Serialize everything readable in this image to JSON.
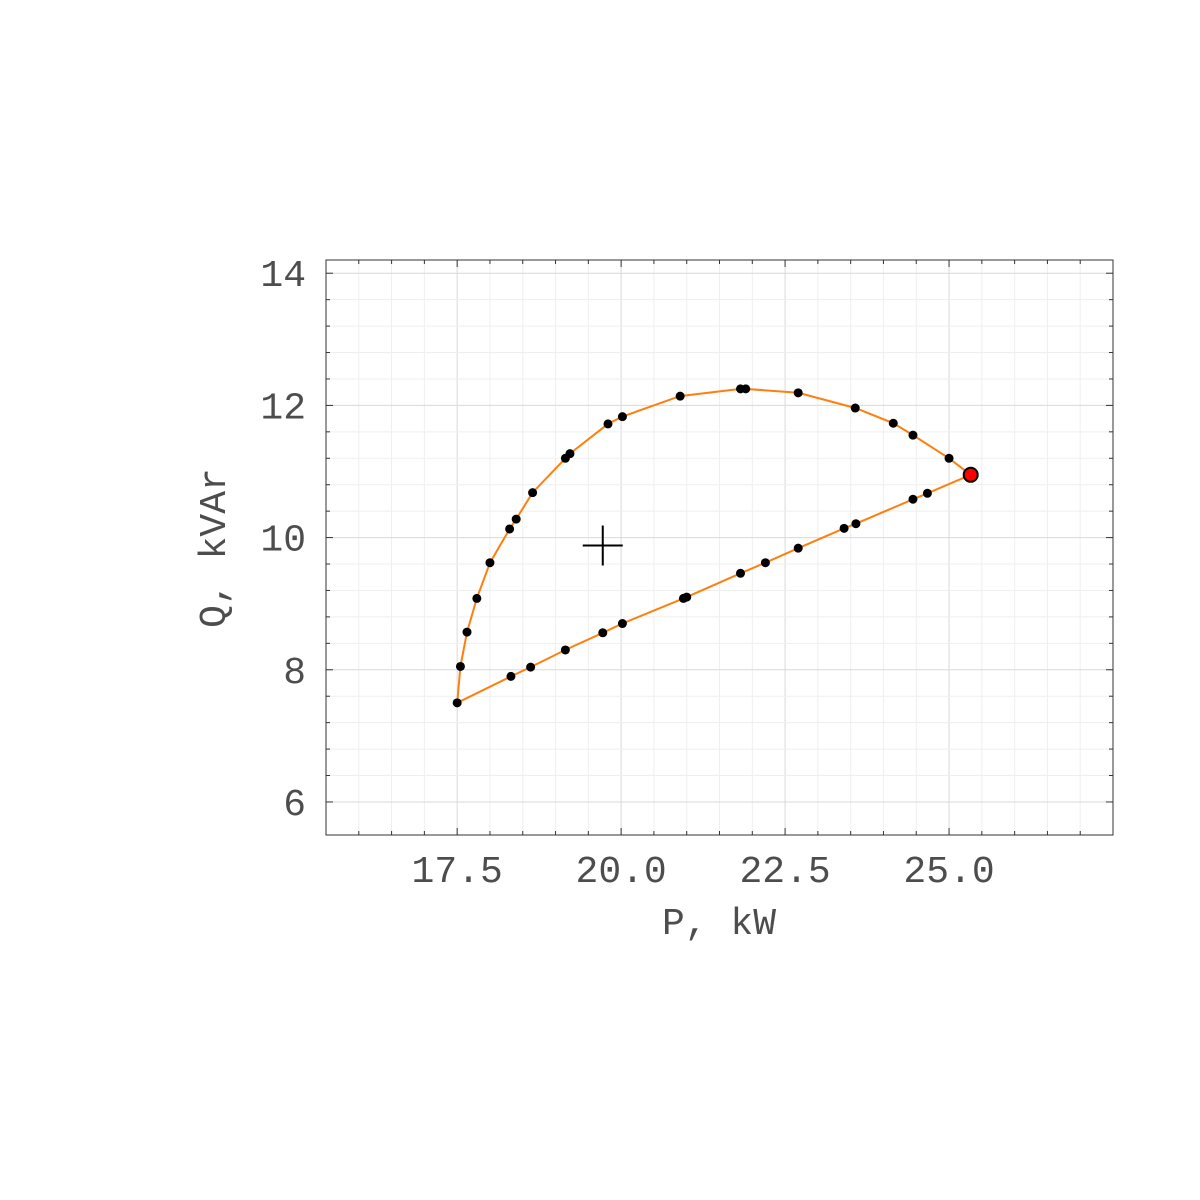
{
  "chart_data": {
    "type": "scatter",
    "xlabel": "P, kW",
    "ylabel": "Q, kVAr",
    "xlim": [
      15.5,
      27.5
    ],
    "ylim": [
      5.5,
      14.2
    ],
    "x_ticks": [
      17.5,
      20.0,
      22.5,
      25.0
    ],
    "x_tick_labels": [
      "17.5",
      "20.0",
      "22.5",
      "25.0"
    ],
    "y_ticks": [
      6,
      8,
      10,
      12,
      14
    ],
    "y_tick_labels": [
      "6",
      "8",
      "10",
      "12",
      "14"
    ],
    "grid": true,
    "legend": "none",
    "line_color": "#ff7f0e",
    "point_color": "#000000",
    "highlight_color": "#ff0000",
    "curve": [
      [
        17.5,
        7.5
      ],
      [
        17.55,
        8.05
      ],
      [
        17.65,
        8.57
      ],
      [
        17.8,
        9.08
      ],
      [
        18.0,
        9.62
      ],
      [
        18.3,
        10.13
      ],
      [
        18.4,
        10.28
      ],
      [
        18.65,
        10.68
      ],
      [
        19.15,
        11.2
      ],
      [
        19.22,
        11.27
      ],
      [
        19.8,
        11.72
      ],
      [
        20.02,
        11.83
      ],
      [
        20.9,
        12.14
      ],
      [
        21.82,
        12.25
      ],
      [
        21.9,
        12.25
      ],
      [
        22.7,
        12.19
      ],
      [
        23.57,
        11.96
      ],
      [
        24.15,
        11.73
      ],
      [
        24.45,
        11.55
      ],
      [
        25.0,
        11.2
      ],
      [
        25.33,
        10.95
      ],
      [
        24.67,
        10.67
      ],
      [
        24.45,
        10.58
      ],
      [
        23.58,
        10.21
      ],
      [
        23.4,
        10.14
      ],
      [
        22.7,
        9.84
      ],
      [
        22.2,
        9.62
      ],
      [
        21.82,
        9.46
      ],
      [
        21.0,
        9.1
      ],
      [
        20.95,
        9.08
      ],
      [
        20.02,
        8.7
      ],
      [
        19.72,
        8.56
      ],
      [
        19.15,
        8.3
      ],
      [
        18.62,
        8.04
      ],
      [
        18.32,
        7.9
      ],
      [
        17.5,
        7.5
      ]
    ],
    "points": [
      [
        17.5,
        7.5
      ],
      [
        17.55,
        8.05
      ],
      [
        17.65,
        8.57
      ],
      [
        17.8,
        9.08
      ],
      [
        18.0,
        9.62
      ],
      [
        18.3,
        10.13
      ],
      [
        18.4,
        10.28
      ],
      [
        18.65,
        10.68
      ],
      [
        19.15,
        11.2
      ],
      [
        19.22,
        11.27
      ],
      [
        19.8,
        11.72
      ],
      [
        20.02,
        11.83
      ],
      [
        20.9,
        12.14
      ],
      [
        21.82,
        12.25
      ],
      [
        21.9,
        12.25
      ],
      [
        22.7,
        12.19
      ],
      [
        23.57,
        11.96
      ],
      [
        24.15,
        11.73
      ],
      [
        24.45,
        11.55
      ],
      [
        25.0,
        11.2
      ],
      [
        24.67,
        10.67
      ],
      [
        24.45,
        10.58
      ],
      [
        23.58,
        10.21
      ],
      [
        23.4,
        10.14
      ],
      [
        22.7,
        9.84
      ],
      [
        22.2,
        9.62
      ],
      [
        21.82,
        9.46
      ],
      [
        21.0,
        9.1
      ],
      [
        20.95,
        9.08
      ],
      [
        20.02,
        8.7
      ],
      [
        19.72,
        8.56
      ],
      [
        19.15,
        8.3
      ],
      [
        18.62,
        8.04
      ],
      [
        18.32,
        7.9
      ]
    ],
    "highlight_point": [
      25.33,
      10.95
    ],
    "center_marker": [
      19.72,
      9.88
    ]
  }
}
